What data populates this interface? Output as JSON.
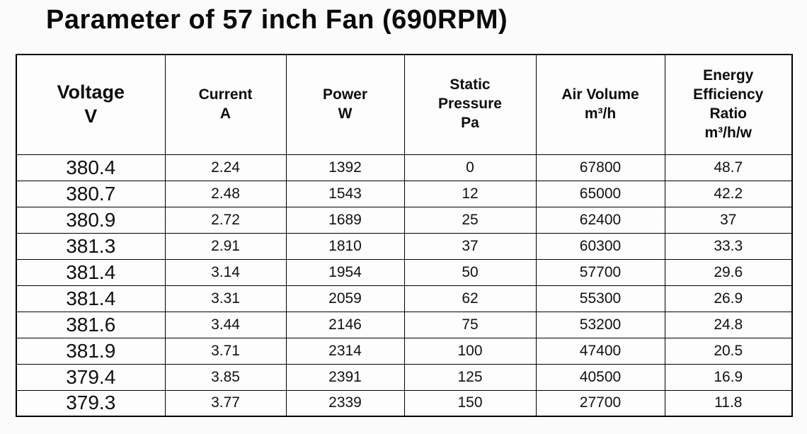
{
  "page": {
    "title": "Parameter of 57 inch Fan (690RPM)"
  },
  "table": {
    "headers": [
      "Voltage\nV",
      "Current\nA",
      "Power\nW",
      "Static\nPressure\nPa",
      "Air Volume\nm³/h",
      "Energy\nEfficiency\nRatio\nm³/h/w"
    ],
    "rows": [
      [
        "380.4",
        "2.24",
        "1392",
        "0",
        "67800",
        "48.7"
      ],
      [
        "380.7",
        "2.48",
        "1543",
        "12",
        "65000",
        "42.2"
      ],
      [
        "380.9",
        "2.72",
        "1689",
        "25",
        "62400",
        "37"
      ],
      [
        "381.3",
        "2.91",
        "1810",
        "37",
        "60300",
        "33.3"
      ],
      [
        "381.4",
        "3.14",
        "1954",
        "50",
        "57700",
        "29.6"
      ],
      [
        "381.4",
        "3.31",
        "2059",
        "62",
        "55300",
        "26.9"
      ],
      [
        "381.6",
        "3.44",
        "2146",
        "75",
        "53200",
        "24.8"
      ],
      [
        "381.9",
        "3.71",
        "2314",
        "100",
        "47400",
        "20.5"
      ],
      [
        "379.4",
        "3.85",
        "2391",
        "125",
        "40500",
        "16.9"
      ],
      [
        "379.3",
        "3.77",
        "2339",
        "150",
        "27700",
        "11.8"
      ]
    ],
    "colors": {
      "border": "#000000",
      "text": "#0d0d0d",
      "background": "#fbfbfb"
    }
  }
}
